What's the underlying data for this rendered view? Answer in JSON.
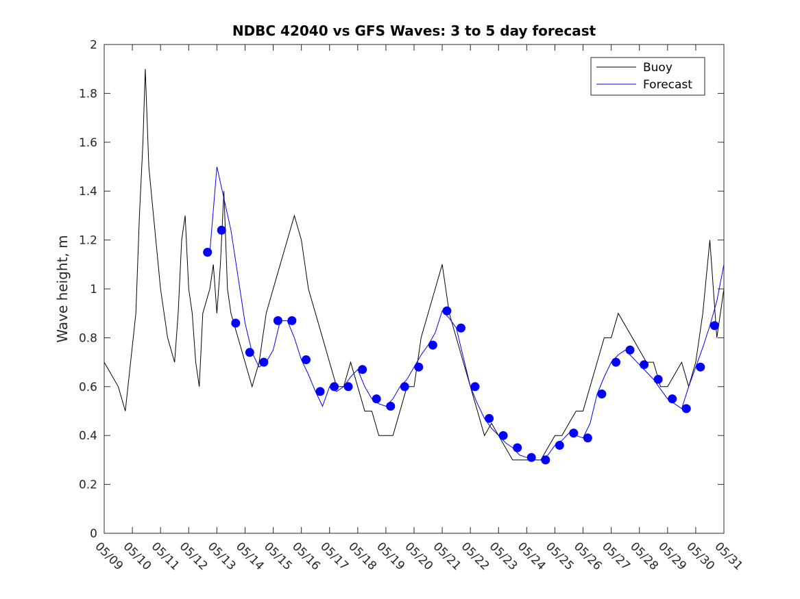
{
  "chart_data": {
    "type": "line",
    "title": "NDBC 42040 vs GFS Waves: 3 to 5 day forecast",
    "xlabel": "",
    "ylabel": "Wave height, m",
    "ylim": [
      0,
      2
    ],
    "yticks": [
      "0",
      "0.2",
      "0.4",
      "0.6",
      "0.8",
      "1",
      "1.2",
      "1.4",
      "1.6",
      "1.8",
      "2"
    ],
    "xlim": [
      "05/09",
      "05/31"
    ],
    "xticks": [
      "05/09",
      "05/10",
      "05/11",
      "05/12",
      "05/13",
      "05/14",
      "05/15",
      "05/16",
      "05/17",
      "05/18",
      "05/19",
      "05/20",
      "05/21",
      "05/22",
      "05/23",
      "05/24",
      "05/25",
      "05/26",
      "05/27",
      "05/28",
      "05/29",
      "05/30",
      "05/31"
    ],
    "grid": false,
    "legend": {
      "position": "top-right",
      "entries": [
        "Buoy",
        "Forecast"
      ]
    },
    "colors": {
      "buoy": "#000000",
      "forecast": "#0000ff",
      "axis": "#262626"
    },
    "series": [
      {
        "name": "Buoy",
        "x": [
          "05/09 00:00",
          "05/09 12:00",
          "05/09 18:00",
          "05/10 03:00",
          "05/10 06:00",
          "05/10 09:00",
          "05/10 11:00",
          "05/10 14:00",
          "05/10 18:00",
          "05/11 00:00",
          "05/11 06:00",
          "05/11 12:00",
          "05/11 15:00",
          "05/11 18:00",
          "05/11 21:00",
          "05/12 00:00",
          "05/12 03:00",
          "05/12 06:00",
          "05/12 09:00",
          "05/12 12:00",
          "05/12 18:00",
          "05/12 21:00",
          "05/13 00:00",
          "05/13 03:00",
          "05/13 06:00",
          "05/13 09:00",
          "05/13 12:00",
          "05/13 18:00",
          "05/14 00:00",
          "05/14 06:00",
          "05/14 12:00",
          "05/14 18:00",
          "05/15 00:00",
          "05/15 06:00",
          "05/15 12:00",
          "05/15 18:00",
          "05/16 00:00",
          "05/16 06:00",
          "05/16 12:00",
          "05/16 18:00",
          "05/17 00:00",
          "05/17 06:00",
          "05/17 12:00",
          "05/17 18:00",
          "05/18 00:00",
          "05/18 06:00",
          "05/18 12:00",
          "05/18 18:00",
          "05/19 00:00",
          "05/19 06:00",
          "05/19 12:00",
          "05/19 18:00",
          "05/20 00:00",
          "05/20 06:00",
          "05/20 12:00",
          "05/20 18:00",
          "05/21 00:00",
          "05/21 06:00",
          "05/21 12:00",
          "05/21 18:00",
          "05/22 00:00",
          "05/22 06:00",
          "05/22 12:00",
          "05/22 18:00",
          "05/23 00:00",
          "05/23 06:00",
          "05/23 12:00",
          "05/23 18:00",
          "05/24 00:00",
          "05/24 06:00",
          "05/24 12:00",
          "05/24 18:00",
          "05/25 00:00",
          "05/25 06:00",
          "05/25 12:00",
          "05/25 18:00",
          "05/26 00:00",
          "05/26 06:00",
          "05/26 12:00",
          "05/26 18:00",
          "05/27 00:00",
          "05/27 06:00",
          "05/27 12:00",
          "05/27 18:00",
          "05/28 00:00",
          "05/28 06:00",
          "05/28 12:00",
          "05/28 18:00",
          "05/29 00:00",
          "05/29 06:00",
          "05/29 12:00",
          "05/29 18:00",
          "05/30 00:00",
          "05/30 06:00",
          "05/30 12:00",
          "05/30 18:00",
          "05/31 00:00"
        ],
        "y": [
          0.7,
          0.6,
          0.5,
          0.9,
          1.3,
          1.6,
          1.9,
          1.5,
          1.3,
          1.0,
          0.8,
          0.7,
          0.9,
          1.2,
          1.3,
          1.0,
          0.9,
          0.7,
          0.6,
          0.9,
          1.0,
          1.1,
          0.9,
          1.1,
          1.4,
          1.0,
          0.9,
          0.8,
          0.7,
          0.6,
          0.7,
          0.9,
          1.0,
          1.1,
          1.2,
          1.3,
          1.2,
          1.0,
          0.9,
          0.8,
          0.7,
          0.6,
          0.6,
          0.7,
          0.6,
          0.5,
          0.5,
          0.4,
          0.4,
          0.4,
          0.5,
          0.6,
          0.6,
          0.8,
          0.9,
          1.0,
          1.1,
          0.9,
          0.8,
          0.7,
          0.6,
          0.5,
          0.4,
          0.45,
          0.4,
          0.35,
          0.3,
          0.3,
          0.3,
          0.3,
          0.3,
          0.35,
          0.4,
          0.4,
          0.45,
          0.5,
          0.5,
          0.6,
          0.7,
          0.8,
          0.8,
          0.9,
          0.85,
          0.8,
          0.75,
          0.7,
          0.7,
          0.6,
          0.6,
          0.65,
          0.7,
          0.6,
          0.7,
          0.9,
          1.2,
          0.8,
          1.0
        ]
      },
      {
        "name": "Forecast",
        "x": [
          "05/12 18:00",
          "05/13 00:00",
          "05/13 12:00",
          "05/13 18:00",
          "05/14 00:00",
          "05/14 06:00",
          "05/14 12:00",
          "05/14 18:00",
          "05/15 00:00",
          "05/15 06:00",
          "05/15 12:00",
          "05/15 18:00",
          "05/16 00:00",
          "05/16 06:00",
          "05/16 12:00",
          "05/16 18:00",
          "05/17 00:00",
          "05/17 06:00",
          "05/17 12:00",
          "05/17 18:00",
          "05/18 00:00",
          "05/18 06:00",
          "05/18 12:00",
          "05/18 18:00",
          "05/19 00:00",
          "05/19 06:00",
          "05/19 12:00",
          "05/19 18:00",
          "05/20 00:00",
          "05/20 06:00",
          "05/20 12:00",
          "05/20 18:00",
          "05/21 00:00",
          "05/21 06:00",
          "05/21 12:00",
          "05/21 18:00",
          "05/22 00:00",
          "05/22 06:00",
          "05/22 12:00",
          "05/22 18:00",
          "05/23 00:00",
          "05/23 06:00",
          "05/23 12:00",
          "05/23 18:00",
          "05/24 00:00",
          "05/24 06:00",
          "05/24 12:00",
          "05/24 18:00",
          "05/25 00:00",
          "05/25 06:00",
          "05/25 12:00",
          "05/25 18:00",
          "05/26 00:00",
          "05/26 06:00",
          "05/26 12:00",
          "05/26 18:00",
          "05/27 00:00",
          "05/27 06:00",
          "05/27 12:00",
          "05/27 18:00",
          "05/28 00:00",
          "05/28 06:00",
          "05/28 12:00",
          "05/28 18:00",
          "05/29 00:00",
          "05/29 06:00",
          "05/29 12:00",
          "05/29 18:00",
          "05/30 00:00",
          "05/30 06:00",
          "05/30 12:00",
          "05/30 18:00",
          "05/31 00:00"
        ],
        "y": [
          1.15,
          1.5,
          1.24,
          1.05,
          0.86,
          0.74,
          0.68,
          0.7,
          0.75,
          0.87,
          0.87,
          0.8,
          0.71,
          0.65,
          0.58,
          0.52,
          0.6,
          0.58,
          0.6,
          0.64,
          0.67,
          0.6,
          0.55,
          0.53,
          0.52,
          0.55,
          0.6,
          0.63,
          0.68,
          0.73,
          0.77,
          0.82,
          0.91,
          0.88,
          0.84,
          0.72,
          0.6,
          0.53,
          0.47,
          0.43,
          0.4,
          0.37,
          0.35,
          0.32,
          0.31,
          0.3,
          0.3,
          0.32,
          0.36,
          0.38,
          0.41,
          0.4,
          0.39,
          0.45,
          0.57,
          0.64,
          0.7,
          0.73,
          0.75,
          0.72,
          0.69,
          0.66,
          0.63,
          0.59,
          0.55,
          0.53,
          0.51,
          0.6,
          0.68,
          0.76,
          0.85,
          0.95,
          1.1
        ]
      }
    ],
    "forecast_markers": [
      {
        "x": "05/12 16:00",
        "y": 1.15
      },
      {
        "x": "05/13 04:00",
        "y": 1.24
      },
      {
        "x": "05/13 16:00",
        "y": 0.86
      },
      {
        "x": "05/14 04:00",
        "y": 0.74
      },
      {
        "x": "05/14 16:00",
        "y": 0.7
      },
      {
        "x": "05/15 04:00",
        "y": 0.87
      },
      {
        "x": "05/15 16:00",
        "y": 0.87
      },
      {
        "x": "05/16 04:00",
        "y": 0.71
      },
      {
        "x": "05/16 16:00",
        "y": 0.58
      },
      {
        "x": "05/17 04:00",
        "y": 0.6
      },
      {
        "x": "05/17 16:00",
        "y": 0.6
      },
      {
        "x": "05/18 04:00",
        "y": 0.67
      },
      {
        "x": "05/18 16:00",
        "y": 0.55
      },
      {
        "x": "05/19 04:00",
        "y": 0.52
      },
      {
        "x": "05/19 16:00",
        "y": 0.6
      },
      {
        "x": "05/20 04:00",
        "y": 0.68
      },
      {
        "x": "05/20 16:00",
        "y": 0.77
      },
      {
        "x": "05/21 04:00",
        "y": 0.91
      },
      {
        "x": "05/21 16:00",
        "y": 0.84
      },
      {
        "x": "05/22 04:00",
        "y": 0.6
      },
      {
        "x": "05/22 16:00",
        "y": 0.47
      },
      {
        "x": "05/23 04:00",
        "y": 0.4
      },
      {
        "x": "05/23 16:00",
        "y": 0.35
      },
      {
        "x": "05/24 04:00",
        "y": 0.31
      },
      {
        "x": "05/24 16:00",
        "y": 0.3
      },
      {
        "x": "05/25 04:00",
        "y": 0.36
      },
      {
        "x": "05/25 16:00",
        "y": 0.41
      },
      {
        "x": "05/26 04:00",
        "y": 0.39
      },
      {
        "x": "05/26 16:00",
        "y": 0.57
      },
      {
        "x": "05/27 04:00",
        "y": 0.7
      },
      {
        "x": "05/27 16:00",
        "y": 0.75
      },
      {
        "x": "05/28 04:00",
        "y": 0.69
      },
      {
        "x": "05/28 16:00",
        "y": 0.63
      },
      {
        "x": "05/29 04:00",
        "y": 0.55
      },
      {
        "x": "05/29 16:00",
        "y": 0.51
      },
      {
        "x": "05/30 04:00",
        "y": 0.68
      },
      {
        "x": "05/30 16:00",
        "y": 0.85
      }
    ]
  }
}
